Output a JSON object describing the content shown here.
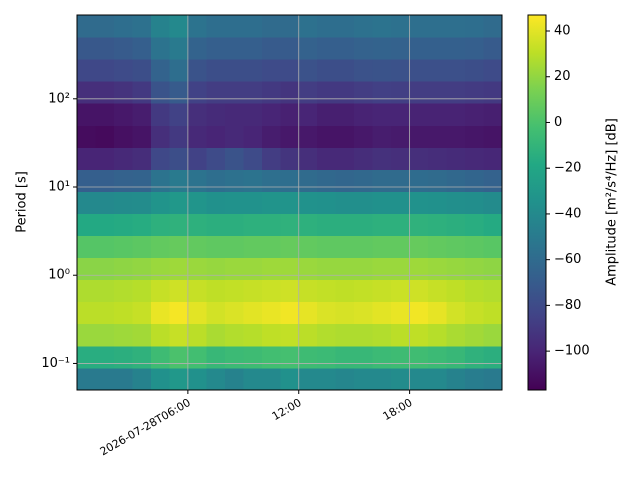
{
  "chart_data": {
    "type": "heatmap",
    "y_label": "Period [s]",
    "colorbar_label": "Amplitude [m²/s⁴/Hz] [dB]",
    "colormap": "viridis",
    "x": [
      "2026-07-28T00:00",
      "2026-07-28T01:00",
      "2026-07-28T02:00",
      "2026-07-28T03:00",
      "2026-07-28T04:00",
      "2026-07-28T05:00",
      "2026-07-28T06:00",
      "2026-07-28T07:00",
      "2026-07-28T08:00",
      "2026-07-28T09:00",
      "2026-07-28T10:00",
      "2026-07-28T11:00",
      "2026-07-28T12:00",
      "2026-07-28T13:00",
      "2026-07-28T14:00",
      "2026-07-28T15:00",
      "2026-07-28T16:00",
      "2026-07-28T17:00",
      "2026-07-28T18:00",
      "2026-07-28T19:00",
      "2026-07-28T20:00",
      "2026-07-28T21:00",
      "2026-07-28T22:00",
      "2026-07-28T23:00"
    ],
    "y": [
      0.05,
      0.089,
      0.158,
      0.282,
      0.501,
      0.891,
      1.585,
      2.818,
      5.01,
      8.91,
      15.85,
      28.18,
      50.1,
      89.1,
      158.5,
      281.8,
      501,
      891
    ],
    "z": [
      [
        -50,
        -50,
        -50,
        -45,
        -35,
        -30,
        -35,
        -40,
        -45,
        -40,
        -40,
        -35,
        -40,
        -40,
        -42,
        -40,
        -40,
        -38,
        -40,
        -40,
        -45,
        -48,
        -50
      ],
      [
        -15,
        -15,
        -14,
        -12,
        -5,
        0,
        -3,
        -8,
        -6,
        -5,
        -3,
        -2,
        -5,
        -6,
        -8,
        -8,
        -6,
        -5,
        -4,
        -6,
        -8,
        -12,
        -14
      ],
      [
        22,
        22,
        23,
        24,
        30,
        33,
        30,
        26,
        28,
        29,
        31,
        32,
        30,
        28,
        27,
        27,
        28,
        30,
        31,
        29,
        26,
        24,
        22
      ],
      [
        30,
        30,
        31,
        33,
        42,
        45,
        40,
        36,
        38,
        40,
        42,
        44,
        41,
        38,
        37,
        38,
        40,
        42,
        44,
        41,
        36,
        33,
        31
      ],
      [
        27,
        27,
        28,
        29,
        33,
        35,
        33,
        31,
        32,
        33,
        34,
        35,
        33,
        32,
        31,
        32,
        33,
        34,
        35,
        33,
        31,
        29,
        28
      ],
      [
        18,
        18,
        19,
        20,
        22,
        23,
        22,
        21,
        22,
        22,
        23,
        23,
        22,
        21,
        21,
        21,
        22,
        22,
        23,
        22,
        21,
        20,
        19
      ],
      [
        3,
        3,
        4,
        5,
        7,
        8,
        7,
        6,
        6,
        7,
        7,
        8,
        7,
        6,
        6,
        6,
        7,
        7,
        8,
        7,
        6,
        5,
        4
      ],
      [
        -18,
        -18,
        -17,
        -16,
        -13,
        -12,
        -13,
        -14,
        -14,
        -13,
        -13,
        -12,
        -13,
        -14,
        -14,
        -14,
        -13,
        -13,
        -12,
        -13,
        -14,
        -15,
        -17
      ],
      [
        -40,
        -40,
        -39,
        -38,
        -33,
        -30,
        -32,
        -35,
        -34,
        -34,
        -33,
        -33,
        -34,
        -35,
        -36,
        -36,
        -35,
        -35,
        -34,
        -35,
        -36,
        -37,
        -39
      ],
      [
        -68,
        -68,
        -66,
        -65,
        -55,
        -50,
        -55,
        -58,
        -56,
        -55,
        -57,
        -58,
        -60,
        -62,
        -63,
        -62,
        -60,
        -60,
        -59,
        -60,
        -62,
        -64,
        -66
      ],
      [
        -100,
        -100,
        -98,
        -96,
        -82,
        -78,
        -85,
        -80,
        -75,
        -80,
        -88,
        -92,
        -95,
        -98,
        -98,
        -96,
        -94,
        -95,
        -95,
        -96,
        -97,
        -98,
        -99
      ],
      [
        -112,
        -113,
        -110,
        -108,
        -95,
        -90,
        -98,
        -100,
        -98,
        -100,
        -104,
        -106,
        -106,
        -108,
        -108,
        -106,
        -104,
        -105,
        -106,
        -106,
        -106,
        -107,
        -108
      ],
      [
        -108,
        -108,
        -106,
        -104,
        -90,
        -85,
        -95,
        -97,
        -98,
        -98,
        -100,
        -102,
        -100,
        -103,
        -103,
        -101,
        -100,
        -100,
        -101,
        -101,
        -101,
        -102,
        -103
      ],
      [
        -95,
        -95,
        -93,
        -90,
        -75,
        -70,
        -85,
        -88,
        -88,
        -88,
        -90,
        -92,
        -88,
        -90,
        -90,
        -88,
        -86,
        -87,
        -88,
        -88,
        -88,
        -89,
        -90
      ],
      [
        -82,
        -82,
        -80,
        -78,
        -65,
        -58,
        -75,
        -78,
        -78,
        -78,
        -80,
        -80,
        -76,
        -78,
        -78,
        -76,
        -75,
        -76,
        -77,
        -77,
        -77,
        -78,
        -80
      ],
      [
        -72,
        -72,
        -70,
        -68,
        -55,
        -50,
        -65,
        -68,
        -68,
        -68,
        -70,
        -70,
        -66,
        -68,
        -68,
        -66,
        -65,
        -66,
        -67,
        -67,
        -67,
        -68,
        -70
      ],
      [
        -60,
        -60,
        -58,
        -56,
        -45,
        -40,
        -55,
        -58,
        -58,
        -58,
        -60,
        -60,
        -56,
        -58,
        -58,
        -56,
        -55,
        -56,
        -57,
        -57,
        -57,
        -58,
        -60
      ]
    ],
    "xlim": [
      "2026-07-28T00:00",
      "2026-07-28T23:00"
    ],
    "xticks": [
      "2026-07-28T06:00",
      {
        "value": "2026-07-28T12:00",
        "label": "12:00"
      },
      {
        "value": "2026-07-28T18:00",
        "label": "18:00"
      }
    ],
    "ylim": [
      0.05,
      891
    ],
    "y_scale": "log",
    "yticks": [
      {
        "value": 0.1,
        "label": "10⁻¹"
      },
      {
        "value": 1,
        "label": "10⁰"
      },
      {
        "value": 10,
        "label": "10¹"
      },
      {
        "value": 100,
        "label": "10²"
      }
    ],
    "clim": [
      -117,
      47
    ],
    "cticks": [
      {
        "value": -100,
        "label": "−100"
      },
      {
        "value": -80,
        "label": "−80"
      },
      {
        "value": -60,
        "label": "−60"
      },
      {
        "value": -40,
        "label": "−40"
      },
      {
        "value": -20,
        "label": "−20"
      },
      0,
      20,
      40
    ],
    "grid": true
  }
}
